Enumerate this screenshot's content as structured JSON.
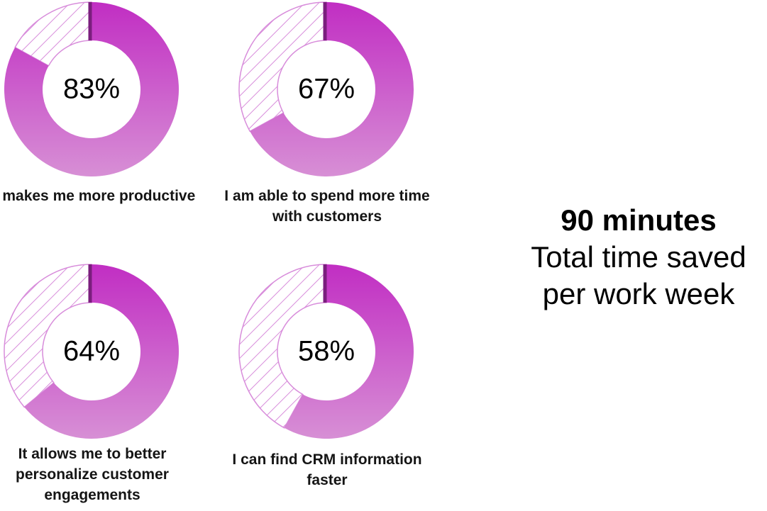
{
  "colors": {
    "gradient_top": "#c12ec3",
    "gradient_bottom": "#d78fd5",
    "hatch": "#d88ddb",
    "divider": "#7a1e7d",
    "percent_text": "#000000"
  },
  "chart_data": [
    {
      "type": "pie",
      "style": "donut",
      "value": 83,
      "value_label": "83%",
      "caption": "It makes me more productive"
    },
    {
      "type": "pie",
      "style": "donut",
      "value": 67,
      "value_label": "67%",
      "caption": "I am able to spend more time with customers"
    },
    {
      "type": "pie",
      "style": "donut",
      "value": 64,
      "value_label": "64%",
      "caption": "It allows me to better personalize customer engagements"
    },
    {
      "type": "pie",
      "style": "donut",
      "value": 58,
      "value_label": "58%",
      "caption": "I can find CRM information faster"
    }
  ],
  "summary": {
    "headline": "90 minutes",
    "subtitle": "Total time saved per work week"
  }
}
